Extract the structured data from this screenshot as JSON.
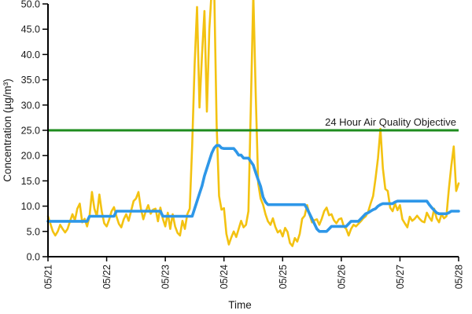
{
  "chart_data": {
    "type": "line",
    "title": "",
    "xlabel": "Time",
    "ylabel": "Concentration (µg/m³)",
    "x_tick_labels": [
      "05/21",
      "05/22",
      "05/23",
      "05/24",
      "05/25",
      "05/26",
      "05/27",
      "05/28"
    ],
    "y_ticks": [
      0,
      5,
      10,
      15,
      20,
      25,
      30,
      35,
      40,
      45,
      50
    ],
    "y_tick_labels": [
      "0.0",
      "5.0",
      "10.0",
      "15.0",
      "20.0",
      "25.0",
      "30.0",
      "35.0",
      "40.0",
      "45.0",
      "50.0"
    ],
    "ylim": [
      0,
      50
    ],
    "x_start": "05/21 00:00",
    "x_end": "05/28 00:00",
    "x_resolution": "hourly",
    "grid": false,
    "legend_position": "none",
    "reference_line": {
      "label": "24 Hour Air Quality Objective",
      "value": 25,
      "color": "#1e8c1e"
    },
    "series": [
      {
        "name": "yellow-line-hourly-concentration",
        "color": "#f3c211",
        "values": [
          8.0,
          6.5,
          5.0,
          4.2,
          5.0,
          6.3,
          5.5,
          4.8,
          5.5,
          7.0,
          8.4,
          7.2,
          9.5,
          10.5,
          6.8,
          7.5,
          6.0,
          8.0,
          12.8,
          9.5,
          8.0,
          12.3,
          8.9,
          6.6,
          6.0,
          7.3,
          9.0,
          9.8,
          8.0,
          6.5,
          5.8,
          7.4,
          8.4,
          7.1,
          9.0,
          11.0,
          11.5,
          12.8,
          9.5,
          7.4,
          9.0,
          10.2,
          8.5,
          9.3,
          9.5,
          7.0,
          9.7,
          7.5,
          6.0,
          8.7,
          5.5,
          8.4,
          6.0,
          4.7,
          4.2,
          7.1,
          5.5,
          8.4,
          9.5,
          22.0,
          38.0,
          49.4,
          29.5,
          40.0,
          48.6,
          28.7,
          45.0,
          53.0,
          53.0,
          26.0,
          12.0,
          9.3,
          9.6,
          4.5,
          2.4,
          3.8,
          5.0,
          3.9,
          5.5,
          7.1,
          5.8,
          6.3,
          9.0,
          30.0,
          52.0,
          32.0,
          14.5,
          11.5,
          10.3,
          8.4,
          7.0,
          6.3,
          7.6,
          5.9,
          4.8,
          5.2,
          4.0,
          5.7,
          4.9,
          2.7,
          2.1,
          3.7,
          3.0,
          4.5,
          7.5,
          8.1,
          10.2,
          8.3,
          6.8,
          7.2,
          7.4,
          6.3,
          7.5,
          9.0,
          9.7,
          8.2,
          8.4,
          7.2,
          6.6,
          7.4,
          7.6,
          6.0,
          5.5,
          4.2,
          5.5,
          6.3,
          6.0,
          6.5,
          7.0,
          7.6,
          8.0,
          8.9,
          10.5,
          12.0,
          15.5,
          19.5,
          25.3,
          17.5,
          13.4,
          13.0,
          9.7,
          9.0,
          10.5,
          9.2,
          10.2,
          7.4,
          6.6,
          5.8,
          7.9,
          7.1,
          7.5,
          8.1,
          7.5,
          7.0,
          6.8,
          8.7,
          7.8,
          7.1,
          9.5,
          7.6,
          6.8,
          8.4,
          7.6,
          8.0,
          13.4,
          18.0,
          21.8,
          13.0,
          14.5
        ]
      },
      {
        "name": "blue-line-24h-rolling-average",
        "color": "#2e97e8",
        "values": [
          7,
          7,
          7,
          7,
          7,
          7,
          7,
          7,
          7,
          7,
          7,
          7,
          7,
          7,
          7,
          7,
          7,
          8,
          8,
          8,
          8,
          8,
          8,
          8,
          8,
          8,
          8,
          8,
          9,
          9,
          9,
          9,
          9,
          9,
          9,
          9,
          9,
          9,
          9,
          9,
          9,
          9,
          9,
          9,
          9,
          9,
          9,
          8,
          8,
          8,
          8,
          8,
          8,
          8,
          8,
          8,
          8,
          8,
          8,
          8,
          9.5,
          11,
          12.5,
          14,
          16,
          17.5,
          19,
          20.5,
          21.5,
          22,
          22,
          21.5,
          21.4,
          21.4,
          21.4,
          21.4,
          21.4,
          20.8,
          20.1,
          20.1,
          19.5,
          19.5,
          19.5,
          18.8,
          18.1,
          16.6,
          15.2,
          13.9,
          11.8,
          10.8,
          10.3,
          10.3,
          10.3,
          10.3,
          10.3,
          10.3,
          10.3,
          10.3,
          10.3,
          10.3,
          10.3,
          10.3,
          10.3,
          10.3,
          10.3,
          10.3,
          9.5,
          8.5,
          7.5,
          6.5,
          5.5,
          5,
          5,
          5,
          5,
          5.5,
          6,
          6,
          6,
          6,
          6,
          6,
          6,
          6.5,
          7,
          7,
          7,
          7,
          7.5,
          8,
          8.5,
          8.7,
          9,
          9.3,
          9.5,
          10,
          10.3,
          10.5,
          10.5,
          10.5,
          10.5,
          10.5,
          10.8,
          11,
          11,
          11,
          11,
          11,
          11,
          11,
          11,
          11,
          11,
          11,
          11,
          11,
          10.3,
          9.7,
          9.2,
          8.7,
          8.5,
          8.5,
          8.5,
          8.5,
          8.7,
          9,
          9,
          9,
          9
        ]
      }
    ]
  }
}
